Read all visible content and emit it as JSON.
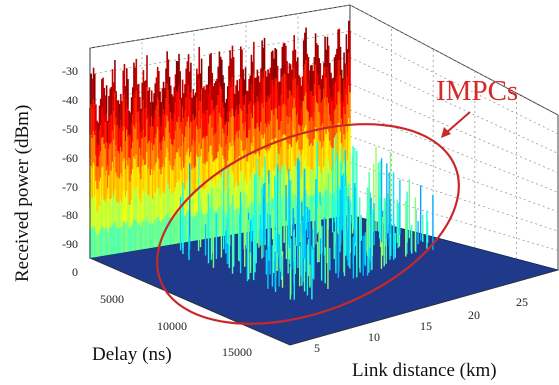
{
  "chart_data": {
    "type": "surface",
    "axes": {
      "x": {
        "label": "Delay (ns)",
        "ticks": [
          "5000",
          "10000",
          "15000"
        ],
        "range": [
          0,
          18000
        ]
      },
      "y": {
        "label": "Link distance (km)",
        "ticks": [
          "5",
          "10",
          "15",
          "20",
          "25"
        ],
        "range": [
          2,
          29
        ]
      },
      "z": {
        "label": "Received power (dBm)",
        "ticks": [
          "-30",
          "-40",
          "-50",
          "-60",
          "-70",
          "-80",
          "-90",
          "0"
        ],
        "range": [
          -95,
          -28
        ]
      }
    },
    "grid": true,
    "colormap": "jet",
    "annotation": {
      "text": "IMPCs",
      "color": "#d42a2a"
    },
    "highlight_color": "#c82828",
    "floor_color": "#1f3a8a"
  }
}
